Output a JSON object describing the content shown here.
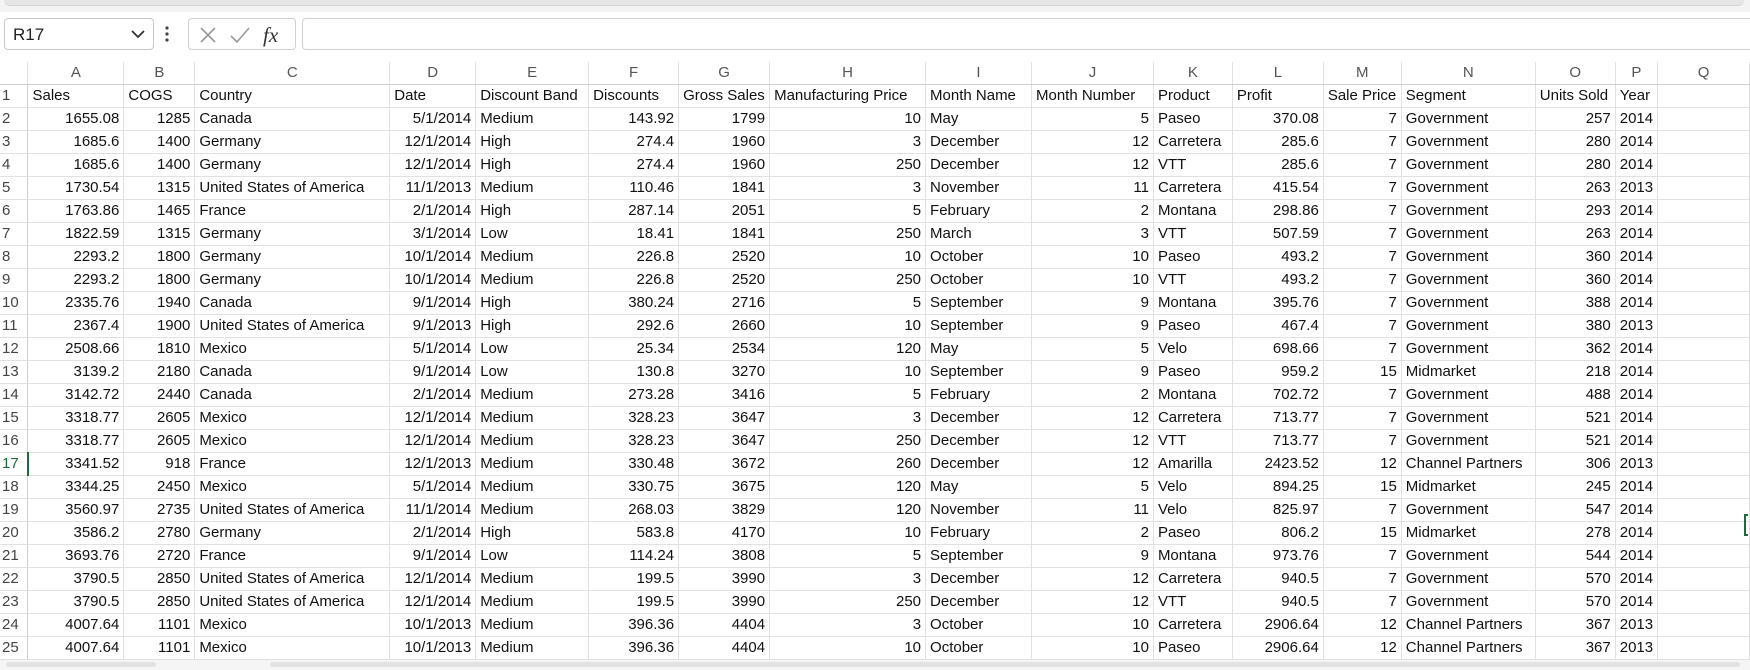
{
  "formula_bar": {
    "name_box": "R17",
    "formula": ""
  },
  "columns": [
    "A",
    "B",
    "C",
    "D",
    "E",
    "F",
    "G",
    "H",
    "I",
    "J",
    "K",
    "L",
    "M",
    "N",
    "O",
    "P",
    "Q"
  ],
  "selected_row": 17,
  "header_row": [
    "Sales",
    "COGS",
    "Country",
    "Date",
    "Discount Band",
    "Discounts",
    "Gross Sales",
    "Manufacturing Price",
    "Month Name",
    "Month Number",
    "Product",
    "Profit",
    "Sale Price",
    "Segment",
    "Units Sold",
    "Year",
    ""
  ],
  "rows": [
    [
      "1655.08",
      "1285",
      "Canada",
      "5/1/2014",
      "Medium",
      "143.92",
      "1799",
      "10",
      "May",
      "5",
      "Paseo",
      "370.08",
      "7",
      "Government",
      "257",
      "2014",
      ""
    ],
    [
      "1685.6",
      "1400",
      "Germany",
      "12/1/2014",
      "High",
      "274.4",
      "1960",
      "3",
      "December",
      "12",
      "Carretera",
      "285.6",
      "7",
      "Government",
      "280",
      "2014",
      ""
    ],
    [
      "1685.6",
      "1400",
      "Germany",
      "12/1/2014",
      "High",
      "274.4",
      "1960",
      "250",
      "December",
      "12",
      "VTT",
      "285.6",
      "7",
      "Government",
      "280",
      "2014",
      ""
    ],
    [
      "1730.54",
      "1315",
      "United States of America",
      "11/1/2013",
      "Medium",
      "110.46",
      "1841",
      "3",
      "November",
      "11",
      "Carretera",
      "415.54",
      "7",
      "Government",
      "263",
      "2013",
      ""
    ],
    [
      "1763.86",
      "1465",
      "France",
      "2/1/2014",
      "High",
      "287.14",
      "2051",
      "5",
      "February",
      "2",
      "Montana",
      "298.86",
      "7",
      "Government",
      "293",
      "2014",
      ""
    ],
    [
      "1822.59",
      "1315",
      "Germany",
      "3/1/2014",
      "Low",
      "18.41",
      "1841",
      "250",
      "March",
      "3",
      "VTT",
      "507.59",
      "7",
      "Government",
      "263",
      "2014",
      ""
    ],
    [
      "2293.2",
      "1800",
      "Germany",
      "10/1/2014",
      "Medium",
      "226.8",
      "2520",
      "10",
      "October",
      "10",
      "Paseo",
      "493.2",
      "7",
      "Government",
      "360",
      "2014",
      ""
    ],
    [
      "2293.2",
      "1800",
      "Germany",
      "10/1/2014",
      "Medium",
      "226.8",
      "2520",
      "250",
      "October",
      "10",
      "VTT",
      "493.2",
      "7",
      "Government",
      "360",
      "2014",
      ""
    ],
    [
      "2335.76",
      "1940",
      "Canada",
      "9/1/2014",
      "High",
      "380.24",
      "2716",
      "5",
      "September",
      "9",
      "Montana",
      "395.76",
      "7",
      "Government",
      "388",
      "2014",
      ""
    ],
    [
      "2367.4",
      "1900",
      "United States of America",
      "9/1/2013",
      "High",
      "292.6",
      "2660",
      "10",
      "September",
      "9",
      "Paseo",
      "467.4",
      "7",
      "Government",
      "380",
      "2013",
      ""
    ],
    [
      "2508.66",
      "1810",
      "Mexico",
      "5/1/2014",
      "Low",
      "25.34",
      "2534",
      "120",
      "May",
      "5",
      "Velo",
      "698.66",
      "7",
      "Government",
      "362",
      "2014",
      ""
    ],
    [
      "3139.2",
      "2180",
      "Canada",
      "9/1/2014",
      "Low",
      "130.8",
      "3270",
      "10",
      "September",
      "9",
      "Paseo",
      "959.2",
      "15",
      "Midmarket",
      "218",
      "2014",
      ""
    ],
    [
      "3142.72",
      "2440",
      "Canada",
      "2/1/2014",
      "Medium",
      "273.28",
      "3416",
      "5",
      "February",
      "2",
      "Montana",
      "702.72",
      "7",
      "Government",
      "488",
      "2014",
      ""
    ],
    [
      "3318.77",
      "2605",
      "Mexico",
      "12/1/2014",
      "Medium",
      "328.23",
      "3647",
      "3",
      "December",
      "12",
      "Carretera",
      "713.77",
      "7",
      "Government",
      "521",
      "2014",
      ""
    ],
    [
      "3318.77",
      "2605",
      "Mexico",
      "12/1/2014",
      "Medium",
      "328.23",
      "3647",
      "250",
      "December",
      "12",
      "VTT",
      "713.77",
      "7",
      "Government",
      "521",
      "2014",
      ""
    ],
    [
      "3341.52",
      "918",
      "France",
      "12/1/2013",
      "Medium",
      "330.48",
      "3672",
      "260",
      "December",
      "12",
      "Amarilla",
      "2423.52",
      "12",
      "Channel Partners",
      "306",
      "2013",
      ""
    ],
    [
      "3344.25",
      "2450",
      "Mexico",
      "5/1/2014",
      "Medium",
      "330.75",
      "3675",
      "120",
      "May",
      "5",
      "Velo",
      "894.25",
      "15",
      "Midmarket",
      "245",
      "2014",
      ""
    ],
    [
      "3560.97",
      "2735",
      "United States of America",
      "11/1/2014",
      "Medium",
      "268.03",
      "3829",
      "120",
      "November",
      "11",
      "Velo",
      "825.97",
      "7",
      "Government",
      "547",
      "2014",
      ""
    ],
    [
      "3586.2",
      "2780",
      "Germany",
      "2/1/2014",
      "High",
      "583.8",
      "4170",
      "10",
      "February",
      "2",
      "Paseo",
      "806.2",
      "15",
      "Midmarket",
      "278",
      "2014",
      ""
    ],
    [
      "3693.76",
      "2720",
      "France",
      "9/1/2014",
      "Low",
      "114.24",
      "3808",
      "5",
      "September",
      "9",
      "Montana",
      "973.76",
      "7",
      "Government",
      "544",
      "2014",
      ""
    ],
    [
      "3790.5",
      "2850",
      "United States of America",
      "12/1/2014",
      "Medium",
      "199.5",
      "3990",
      "3",
      "December",
      "12",
      "Carretera",
      "940.5",
      "7",
      "Government",
      "570",
      "2014",
      ""
    ],
    [
      "3790.5",
      "2850",
      "United States of America",
      "12/1/2014",
      "Medium",
      "199.5",
      "3990",
      "250",
      "December",
      "12",
      "VTT",
      "940.5",
      "7",
      "Government",
      "570",
      "2014",
      ""
    ],
    [
      "4007.64",
      "1101",
      "Mexico",
      "10/1/2013",
      "Medium",
      "396.36",
      "4404",
      "3",
      "October",
      "10",
      "Carretera",
      "2906.64",
      "12",
      "Channel Partners",
      "367",
      "2013",
      ""
    ],
    [
      "4007.64",
      "1101",
      "Mexico",
      "10/1/2013",
      "Medium",
      "396.36",
      "4404",
      "10",
      "October",
      "10",
      "Paseo",
      "2906.64",
      "12",
      "Channel Partners",
      "367",
      "2013",
      ""
    ]
  ],
  "column_align": [
    "num",
    "num",
    "txt",
    "num",
    "txt",
    "num",
    "num",
    "num",
    "txt",
    "num",
    "txt",
    "num",
    "num",
    "txt",
    "num",
    "txt",
    "txt"
  ],
  "icons": {
    "dropdown": "chevron-down-icon",
    "more": "more-options-icon",
    "cancel": "cancel-icon",
    "enter": "enter-check-icon",
    "function": "insert-function-icon"
  }
}
